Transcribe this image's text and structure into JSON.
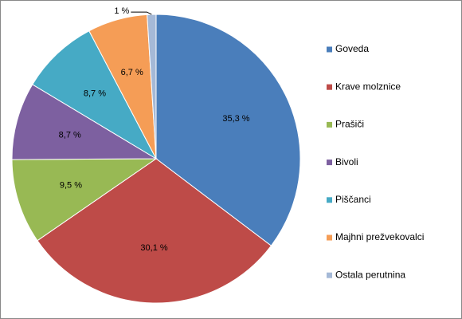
{
  "chart_data": {
    "type": "pie",
    "categories": [
      "Goveda",
      "Krave molznice",
      "Prašiči",
      "Bivoli",
      "Piščanci",
      "Majhni prežvekovalci",
      "Ostala perutnina"
    ],
    "values": [
      35.3,
      30.1,
      9.5,
      8.7,
      8.7,
      6.7,
      1
    ],
    "value_labels": [
      "35,3 %",
      "30,1 %",
      "9,5 %",
      "8,7 %",
      "8,7 %",
      "6,7 %",
      "1 %"
    ],
    "colors": [
      "#4a7ebb",
      "#be4b48",
      "#98b954",
      "#7d60a0",
      "#46aac5",
      "#f59d56",
      "#a5b9d7"
    ],
    "legend": "right"
  }
}
